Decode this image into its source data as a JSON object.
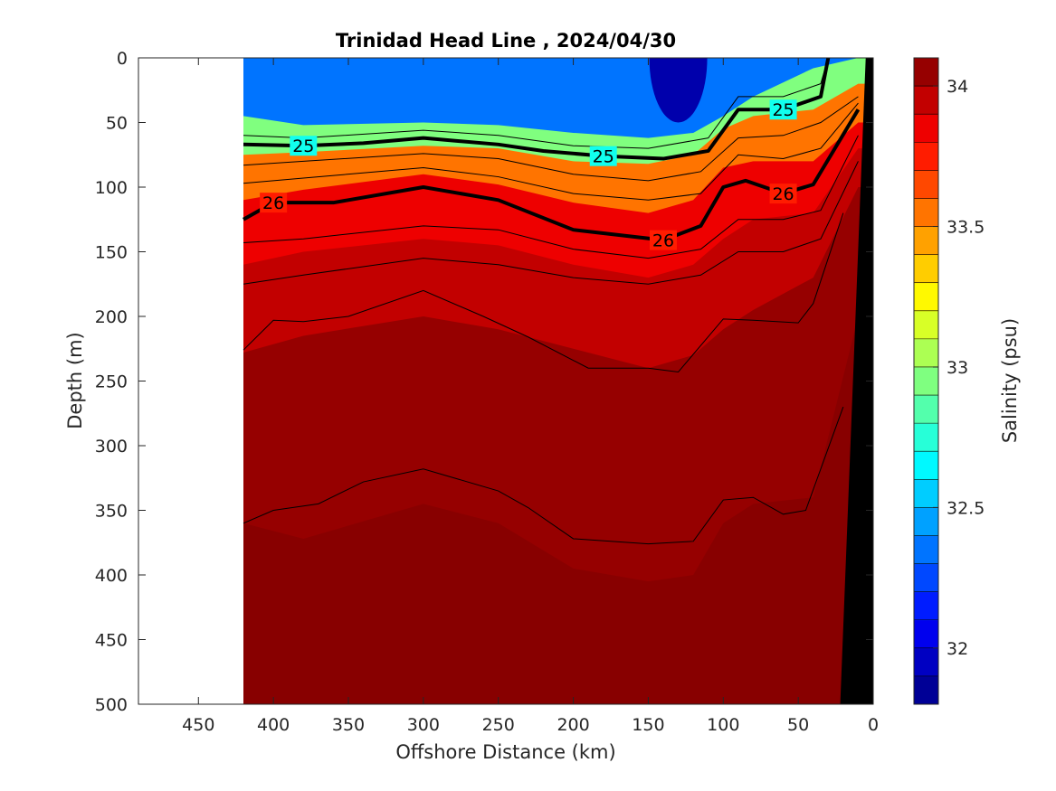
{
  "chart_data": {
    "type": "heatmap",
    "subtype": "filled-contour-section",
    "title": "Trinidad Head Line , 2024/04/30",
    "xlabel": "Offshore Distance (km)",
    "ylabel": "Depth (m)",
    "xlim": [
      490,
      0
    ],
    "ylim": [
      500,
      0
    ],
    "x_reversed": true,
    "y_reversed": true,
    "xticks": [
      450,
      400,
      350,
      300,
      250,
      200,
      150,
      100,
      50,
      0
    ],
    "xtick_labels": [
      "450",
      "400",
      "350",
      "300",
      "250",
      "200",
      "150",
      "100",
      "50",
      "0"
    ],
    "yticks": [
      0,
      50,
      100,
      150,
      200,
      250,
      300,
      350,
      400,
      450,
      500
    ],
    "ytick_labels": [
      "0",
      "50",
      "100",
      "150",
      "200",
      "250",
      "300",
      "350",
      "400",
      "450",
      "500"
    ],
    "data_extent_km": [
      420,
      0
    ],
    "colorbar": {
      "label": "Salinity (psu)",
      "range": [
        31.8,
        34.1
      ],
      "ticks": [
        32,
        32.5,
        33,
        33.5,
        34
      ],
      "tick_labels": [
        "32",
        "32.5",
        "33",
        "33.5",
        "34"
      ],
      "colormap": "jet",
      "levels": 23
    },
    "salinity_layers": [
      {
        "upper_bound_psu": 32.4,
        "depth_profile_m": [
          [
            420,
            45
          ],
          [
            380,
            52
          ],
          [
            300,
            50
          ],
          [
            250,
            52
          ],
          [
            200,
            58
          ],
          [
            150,
            62
          ],
          [
            120,
            58
          ],
          [
            100,
            45
          ],
          [
            80,
            30
          ],
          [
            40,
            8
          ],
          [
            10,
            0
          ]
        ]
      },
      {
        "upper_bound_psu": 33.0,
        "depth_profile_m": [
          [
            420,
            75
          ],
          [
            380,
            73
          ],
          [
            300,
            68
          ],
          [
            250,
            70
          ],
          [
            200,
            80
          ],
          [
            150,
            82
          ],
          [
            120,
            75
          ],
          [
            100,
            55
          ],
          [
            80,
            45
          ],
          [
            40,
            40
          ],
          [
            10,
            20
          ]
        ]
      },
      {
        "upper_bound_psu": 33.6,
        "depth_profile_m": [
          [
            420,
            110
          ],
          [
            380,
            102
          ],
          [
            300,
            90
          ],
          [
            250,
            98
          ],
          [
            200,
            112
          ],
          [
            150,
            120
          ],
          [
            120,
            110
          ],
          [
            100,
            85
          ],
          [
            80,
            80
          ],
          [
            40,
            80
          ],
          [
            10,
            50
          ]
        ]
      },
      {
        "upper_bound_psu": 33.9,
        "depth_profile_m": [
          [
            420,
            160
          ],
          [
            380,
            150
          ],
          [
            300,
            140
          ],
          [
            250,
            145
          ],
          [
            200,
            160
          ],
          [
            150,
            170
          ],
          [
            120,
            160
          ],
          [
            100,
            140
          ],
          [
            80,
            125
          ],
          [
            40,
            120
          ],
          [
            10,
            70
          ]
        ]
      },
      {
        "upper_bound_psu": 34.0,
        "depth_profile_m": [
          [
            420,
            228
          ],
          [
            380,
            215
          ],
          [
            300,
            200
          ],
          [
            250,
            210
          ],
          [
            200,
            225
          ],
          [
            150,
            240
          ],
          [
            120,
            230
          ],
          [
            100,
            210
          ],
          [
            80,
            195
          ],
          [
            40,
            170
          ],
          [
            10,
            100
          ]
        ]
      },
      {
        "upper_bound_psu": 34.1,
        "depth_profile_m": [
          [
            420,
            360
          ],
          [
            380,
            372
          ],
          [
            300,
            345
          ],
          [
            250,
            360
          ],
          [
            200,
            395
          ],
          [
            150,
            405
          ],
          [
            120,
            400
          ],
          [
            100,
            360
          ],
          [
            80,
            345
          ],
          [
            40,
            340
          ],
          [
            10,
            200
          ]
        ]
      }
    ],
    "density_contours": [
      {
        "sigma_theta": 25,
        "label": "25",
        "depth_profile_m": [
          [
            420,
            67
          ],
          [
            380,
            68
          ],
          [
            340,
            66
          ],
          [
            300,
            62
          ],
          [
            250,
            67
          ],
          [
            220,
            72
          ],
          [
            180,
            76
          ],
          [
            140,
            78
          ],
          [
            110,
            72
          ],
          [
            90,
            40
          ],
          [
            60,
            40
          ],
          [
            35,
            30
          ],
          [
            30,
            0
          ]
        ]
      },
      {
        "sigma_theta": 26,
        "label": "26",
        "depth_profile_m": [
          [
            420,
            125
          ],
          [
            400,
            112
          ],
          [
            360,
            112
          ],
          [
            300,
            100
          ],
          [
            250,
            110
          ],
          [
            200,
            133
          ],
          [
            140,
            141
          ],
          [
            115,
            130
          ],
          [
            100,
            100
          ],
          [
            85,
            95
          ],
          [
            60,
            105
          ],
          [
            40,
            98
          ],
          [
            10,
            40
          ]
        ]
      }
    ],
    "thin_contours": [
      {
        "depth_profile_m": [
          [
            420,
            60
          ],
          [
            380,
            62
          ],
          [
            300,
            56
          ],
          [
            250,
            60
          ],
          [
            200,
            68
          ],
          [
            150,
            70
          ],
          [
            110,
            62
          ],
          [
            90,
            30
          ],
          [
            60,
            30
          ],
          [
            35,
            20
          ],
          [
            30,
            0
          ]
        ]
      },
      {
        "depth_profile_m": [
          [
            420,
            83
          ],
          [
            380,
            80
          ],
          [
            300,
            74
          ],
          [
            250,
            78
          ],
          [
            200,
            90
          ],
          [
            150,
            95
          ],
          [
            115,
            88
          ],
          [
            90,
            62
          ],
          [
            60,
            60
          ],
          [
            35,
            50
          ],
          [
            10,
            30
          ]
        ]
      },
      {
        "depth_profile_m": [
          [
            420,
            97
          ],
          [
            380,
            93
          ],
          [
            300,
            85
          ],
          [
            250,
            92
          ],
          [
            200,
            105
          ],
          [
            150,
            110
          ],
          [
            115,
            105
          ],
          [
            90,
            75
          ],
          [
            60,
            78
          ],
          [
            35,
            70
          ],
          [
            10,
            35
          ]
        ]
      },
      {
        "depth_profile_m": [
          [
            420,
            143
          ],
          [
            380,
            140
          ],
          [
            300,
            130
          ],
          [
            250,
            133
          ],
          [
            200,
            148
          ],
          [
            150,
            155
          ],
          [
            115,
            148
          ],
          [
            90,
            125
          ],
          [
            60,
            125
          ],
          [
            35,
            118
          ],
          [
            10,
            60
          ]
        ]
      },
      {
        "depth_profile_m": [
          [
            420,
            175
          ],
          [
            380,
            168
          ],
          [
            300,
            155
          ],
          [
            250,
            160
          ],
          [
            200,
            170
          ],
          [
            150,
            175
          ],
          [
            115,
            168
          ],
          [
            90,
            150
          ],
          [
            60,
            150
          ],
          [
            35,
            140
          ],
          [
            10,
            80
          ]
        ]
      },
      {
        "depth_profile_m": [
          [
            420,
            226
          ],
          [
            400,
            203
          ],
          [
            380,
            204
          ],
          [
            350,
            200
          ],
          [
            300,
            180
          ],
          [
            260,
            200
          ],
          [
            230,
            216
          ],
          [
            190,
            240
          ],
          [
            150,
            240
          ],
          [
            130,
            243
          ],
          [
            100,
            202
          ],
          [
            80,
            203
          ],
          [
            50,
            205
          ],
          [
            40,
            190
          ],
          [
            20,
            120
          ]
        ]
      },
      {
        "depth_profile_m": [
          [
            420,
            360
          ],
          [
            400,
            350
          ],
          [
            370,
            345
          ],
          [
            340,
            328
          ],
          [
            300,
            318
          ],
          [
            250,
            335
          ],
          [
            230,
            348
          ],
          [
            200,
            372
          ],
          [
            150,
            376
          ],
          [
            120,
            374
          ],
          [
            100,
            342
          ],
          [
            80,
            340
          ],
          [
            60,
            353
          ],
          [
            45,
            350
          ],
          [
            20,
            270
          ]
        ]
      }
    ],
    "bathymetry_polygon_km_m": [
      [
        0,
        0
      ],
      [
        5,
        0
      ],
      [
        22,
        500
      ],
      [
        0,
        500
      ]
    ],
    "surface_low_salinity_cell": {
      "center_km": 130,
      "depth_range_m": [
        0,
        50
      ]
    }
  }
}
